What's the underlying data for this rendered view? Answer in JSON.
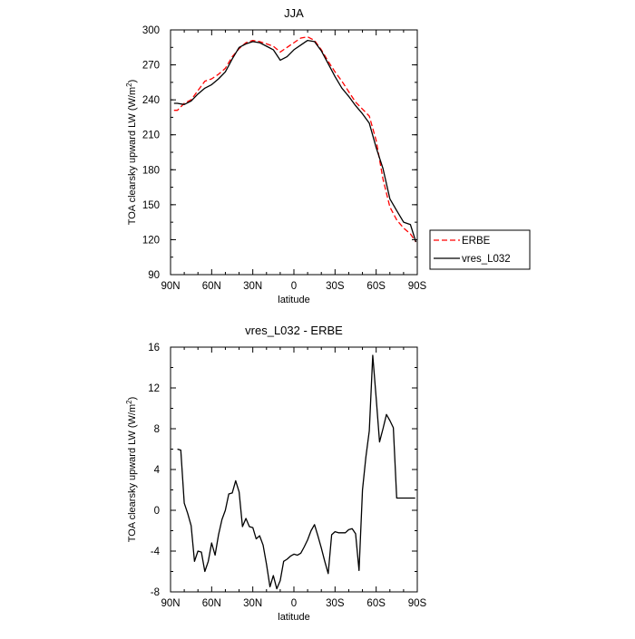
{
  "chart_data": [
    {
      "type": "line",
      "title": "JJA",
      "xlabel": "latitude",
      "ylabel": "TOA clearsky upward LW (W/m",
      "ylabel_sup": "2",
      "ylabel_tail": ")",
      "xlim": [
        90,
        -90
      ],
      "ylim": [
        90,
        300
      ],
      "xticks": [
        90,
        60,
        30,
        0,
        -30,
        -60,
        -90
      ],
      "xticklabels": [
        "90N",
        "60N",
        "30N",
        "0",
        "30S",
        "60S",
        "90S"
      ],
      "yticks": [
        90,
        120,
        150,
        180,
        210,
        240,
        270,
        300
      ],
      "yticklabels": [
        "90",
        "120",
        "150",
        "180",
        "210",
        "240",
        "270",
        "300"
      ],
      "legend_position": "right",
      "series": [
        {
          "name": "ERBE",
          "color": "#ff0000",
          "dash": true,
          "x": [
            87.5,
            85,
            80,
            75,
            70,
            65,
            60,
            55,
            50,
            45,
            40,
            35,
            30,
            25,
            20,
            15,
            10,
            5,
            0,
            -5,
            -10,
            -15,
            -20,
            -25,
            -30,
            -35,
            -40,
            -45,
            -50,
            -55,
            -60,
            -65,
            -70,
            -75,
            -80,
            -85,
            -89
          ],
          "y": [
            231,
            231,
            237,
            240,
            248,
            256,
            258,
            262,
            267,
            277,
            284,
            289,
            291,
            290,
            288,
            286,
            281,
            285,
            289,
            293,
            294,
            291,
            283,
            273,
            264,
            256,
            247,
            238,
            232,
            226,
            205,
            172,
            148,
            137,
            130,
            125,
            118
          ]
        },
        {
          "name": "vres_L032",
          "color": "#000000",
          "dash": false,
          "x": [
            87.5,
            85,
            80,
            75,
            70,
            65,
            60,
            55,
            50,
            45,
            40,
            35,
            30,
            25,
            20,
            15,
            10,
            5,
            0,
            -5,
            -10,
            -15,
            -20,
            -25,
            -30,
            -35,
            -40,
            -45,
            -50,
            -55,
            -60,
            -65,
            -70,
            -75,
            -80,
            -85,
            -89
          ],
          "y": [
            237,
            237,
            236,
            239,
            245,
            250,
            253,
            258,
            264,
            275,
            285,
            288,
            290,
            289,
            286,
            283,
            274,
            277,
            283,
            287,
            291,
            290,
            282,
            271,
            260,
            250,
            243,
            235,
            228,
            220,
            199,
            181,
            155,
            145,
            135,
            133,
            118
          ]
        }
      ]
    },
    {
      "type": "line",
      "title": "vres_L032 - ERBE",
      "xlabel": "latitude",
      "ylabel": "TOA clearsky upward LW (W/m",
      "ylabel_sup": "2",
      "ylabel_tail": ")",
      "xlim": [
        90,
        -90
      ],
      "ylim": [
        -8,
        16
      ],
      "xticks": [
        90,
        60,
        30,
        0,
        -30,
        -60,
        -90
      ],
      "xticklabels": [
        "90N",
        "60N",
        "30N",
        "0",
        "30S",
        "60S",
        "90S"
      ],
      "yticks": [
        -8,
        -4,
        0,
        4,
        8,
        12,
        16
      ],
      "yticklabels": [
        "-8",
        "-4",
        "0",
        "4",
        "8",
        "12",
        "16"
      ],
      "series": [
        {
          "name": "",
          "color": "#000000",
          "dash": false,
          "x": [
            85,
            82.5,
            80,
            77.5,
            75,
            72.5,
            70,
            67.5,
            65,
            62.5,
            60,
            57.5,
            55,
            52.5,
            50,
            47.5,
            45,
            42.5,
            40,
            37.5,
            35,
            32.5,
            30,
            27.5,
            25,
            22.5,
            20,
            17.5,
            15,
            12.5,
            10,
            7.5,
            5,
            2.5,
            0,
            -2.5,
            -5,
            -7.5,
            -10,
            -12.5,
            -15,
            -17.5,
            -20,
            -22.5,
            -25,
            -27.5,
            -30,
            -32.5,
            -35,
            -37.5,
            -40,
            -42.5,
            -45,
            -47.5,
            -50,
            -52.5,
            -55,
            -57.5,
            -60,
            -62.5,
            -65,
            -67.5,
            -70,
            -72.5,
            -75,
            -77.5,
            -80,
            -82.5,
            -85,
            -87.5
          ],
          "y": [
            6.0,
            5.9,
            0.7,
            -0.3,
            -1.5,
            -5.0,
            -4.0,
            -4.1,
            -6.0,
            -5.0,
            -3.2,
            -4.4,
            -2.4,
            -0.9,
            0.0,
            1.6,
            1.7,
            2.9,
            1.8,
            -1.6,
            -0.8,
            -1.6,
            -1.7,
            -2.8,
            -2.5,
            -3.4,
            -5.3,
            -7.5,
            -6.4,
            -7.7,
            -6.9,
            -5.0,
            -4.8,
            -4.5,
            -4.3,
            -4.4,
            -4.2,
            -3.6,
            -2.9,
            -2.0,
            -1.4,
            -2.5,
            -3.7,
            -5.0,
            -6.2,
            -2.4,
            -2.1,
            -2.2,
            -2.2,
            -2.2,
            -1.9,
            -1.8,
            -2.3,
            -5.9,
            2.0,
            5.2,
            7.8,
            15.2,
            11.0,
            6.7,
            8.0,
            9.4,
            8.8,
            8.1,
            1.2,
            1.2,
            1.2,
            1.2,
            1.2,
            1.2
          ]
        }
      ]
    }
  ]
}
